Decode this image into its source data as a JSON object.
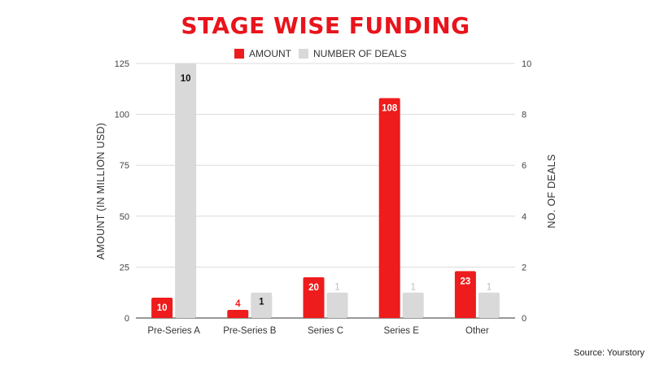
{
  "chart_data": {
    "type": "bar",
    "title": "STAGE WISE FUNDING",
    "categories": [
      "Pre-Series A",
      "Pre-Series B",
      "Series C",
      "Series E",
      "Other"
    ],
    "series": [
      {
        "name": "AMOUNT",
        "axis": "left",
        "color": "#ee1c1c",
        "values": [
          10,
          4,
          20,
          108,
          23
        ],
        "labels": [
          "10",
          "4",
          "20",
          "108",
          "23"
        ]
      },
      {
        "name": "NUMBER OF DEALS",
        "axis": "right",
        "color": "#d9d9d9",
        "values": [
          10,
          1,
          1,
          1,
          1
        ],
        "labels": [
          "10",
          "1",
          "1",
          "1",
          "1"
        ]
      }
    ],
    "ylabel": "AMOUNT (IN MILLION USD)",
    "ylim": [
      0,
      125
    ],
    "yticks": [
      0,
      25,
      50,
      75,
      100,
      125
    ],
    "y2label": "NO. OF DEALS",
    "y2lim": [
      0,
      10
    ],
    "y2ticks": [
      0,
      2,
      4,
      6,
      8,
      10
    ],
    "legend_position": "top",
    "grid": true
  },
  "source": "Source: Yourstory"
}
